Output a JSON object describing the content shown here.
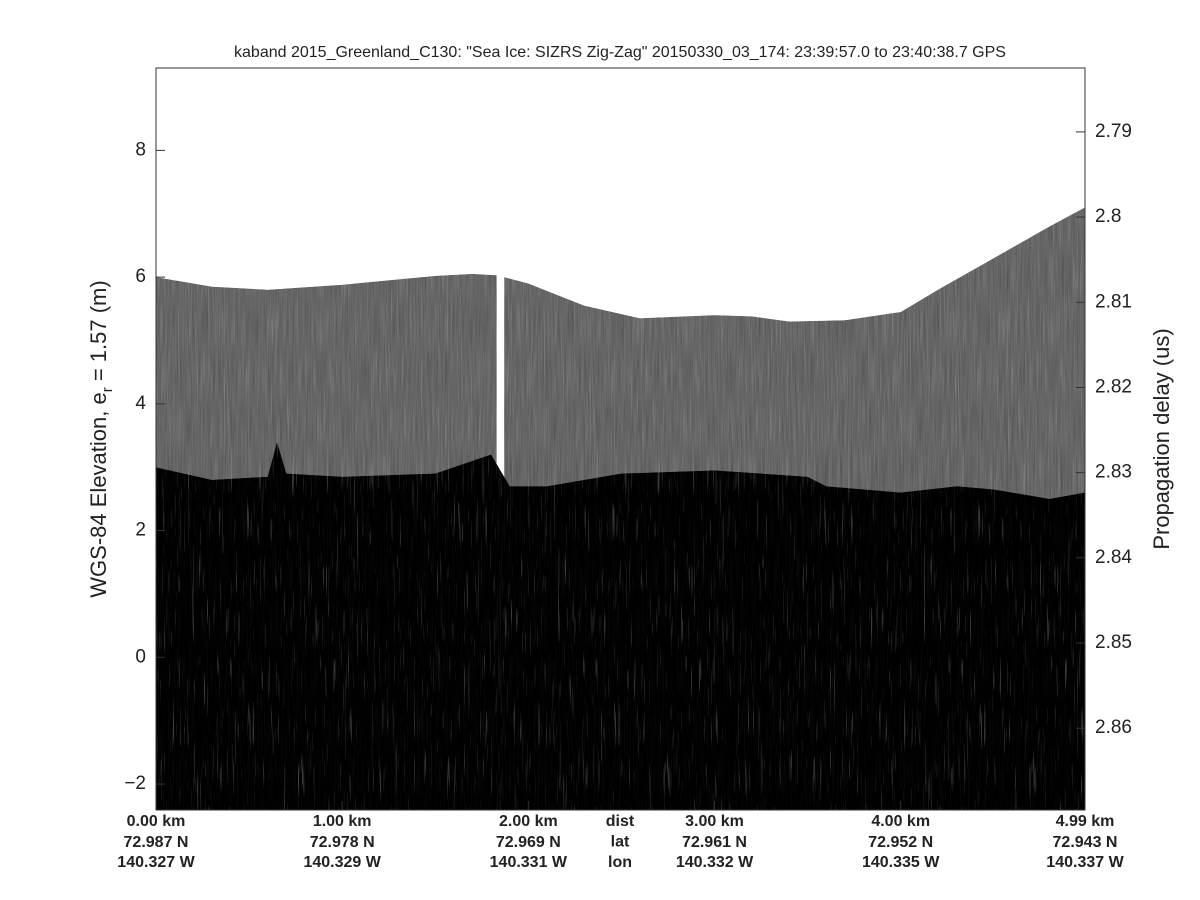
{
  "chart_data": {
    "type": "echogram",
    "title": "kaband 2015_Greenland_C130: \"Sea Ice: SIZRS Zig-Zag\"  20150330_03_174: 23:39:57.0 to 23:40:38.7 GPS",
    "ylabel": "WGS-84 Elevation, e",
    "ylabel_sub": "r",
    "ylabel_end": " = 1.57 (m)",
    "y2label": "Propagation delay (us)",
    "xlim": [
      0,
      4.99
    ],
    "ylim": [
      -2.41,
      9.3
    ],
    "y2lim": [
      2.8696,
      2.7825
    ],
    "yticks": [
      {
        "value": -2,
        "label": "−2"
      },
      0,
      2,
      4,
      6,
      8
    ],
    "y2ticks": [
      2.79,
      2.8,
      2.81,
      2.82,
      2.83,
      2.84,
      2.85,
      2.86
    ],
    "xticks": [
      {
        "value": 0,
        "label": "0.00 km"
      },
      {
        "value": 1,
        "label": "1.00 km"
      },
      {
        "value": 2,
        "label": "2.00 km"
      },
      {
        "value": 3,
        "label": "3.00 km"
      },
      {
        "value": 4,
        "label": "4.00 km"
      },
      {
        "value": 4.99,
        "label": "4.99 km"
      }
    ],
    "xtick_lat": [
      "72.987 N",
      "72.978 N",
      "72.969 N",
      "72.961 N",
      "72.952 N",
      "72.943 N"
    ],
    "xtick_lon": [
      "140.327 W",
      "140.329 W",
      "140.331 W",
      "140.332 W",
      "140.335 W",
      "140.337 W"
    ],
    "xtick_row_names": [
      "dist",
      "lat",
      "lon"
    ],
    "surface": {
      "color": "#7c7c7c",
      "x": [
        0,
        0.3,
        0.6,
        1.0,
        1.5,
        1.7,
        1.83,
        1.85,
        1.87,
        2.0,
        2.3,
        2.6,
        3.0,
        3.2,
        3.4,
        3.7,
        4.0,
        4.2,
        4.5,
        4.8,
        4.99
      ],
      "values": [
        6.0,
        5.85,
        5.8,
        5.88,
        6.02,
        6.05,
        6.03,
        null,
        6.0,
        5.9,
        5.55,
        5.35,
        5.4,
        5.38,
        5.3,
        5.32,
        5.45,
        5.8,
        6.3,
        6.8,
        7.1
      ]
    },
    "interface": {
      "color": "#3b3b3b",
      "x": [
        0,
        0.3,
        0.6,
        0.65,
        0.7,
        1.0,
        1.5,
        1.8,
        1.9,
        2.1,
        2.5,
        3.0,
        3.5,
        3.6,
        4.0,
        4.3,
        4.5,
        4.8,
        4.99
      ],
      "values": [
        3.0,
        2.8,
        2.85,
        3.4,
        2.9,
        2.85,
        2.9,
        3.2,
        2.7,
        2.7,
        2.9,
        2.95,
        2.85,
        2.7,
        2.6,
        2.7,
        2.65,
        2.5,
        2.6
      ]
    }
  }
}
